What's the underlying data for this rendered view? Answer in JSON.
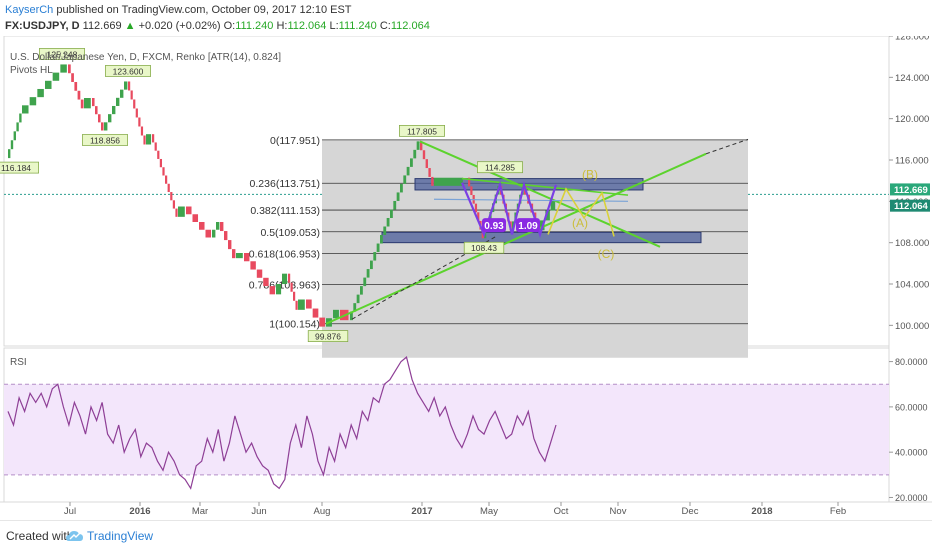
{
  "header": {
    "author": "KayserCh",
    "published_text": "published on TradingView.com, October 09, 2017 12:10 EST",
    "symbol": "FX:USDJPY, D",
    "last": "112.669",
    "change_arrow": "▲",
    "change": "+0.020 (+0.02%)",
    "o_label": "O:",
    "o": "111.240",
    "h_label": "H:",
    "h": "112.064",
    "l_label": "L:",
    "l": "111.240",
    "c_label": "C:",
    "c": "112.064"
  },
  "chart_data": {
    "type": "line",
    "title": "U.S. Dollar/Japanese Yen, D, FXCM, Renko [ATR(14), 0.824]",
    "indicator": "Pivots HL",
    "x_ticks": [
      "Jul",
      "2016",
      "Mar",
      "Jun",
      "Aug",
      "2017",
      "May",
      "Oct",
      "Nov",
      "Dec",
      "2018",
      "Feb"
    ],
    "y_ticks": [
      "128.000",
      "124.000",
      "120.000",
      "116.000",
      "112.000",
      "108.000",
      "104.000",
      "100.000"
    ],
    "ylim": [
      98,
      128
    ],
    "price_labels": {
      "last": "112.669",
      "close": "112.064"
    },
    "renko_path": [
      116.184,
      120.5,
      125.248,
      121.0,
      122.0,
      118.856,
      123.6,
      117.5,
      118.5,
      110.5,
      111.5,
      108.5,
      110.0,
      106.5,
      107.0,
      103.0,
      105.0,
      101.5,
      102.5,
      99.876,
      101.5,
      100.5,
      117.805,
      113.5,
      114.285,
      108.43,
      113.5,
      109.2,
      113.5,
      109.2,
      112.064
    ],
    "pivots": [
      {
        "label": "116.184",
        "value": 116.184
      },
      {
        "label": "125.248",
        "value": 125.248
      },
      {
        "label": "118.856",
        "value": 118.856
      },
      {
        "label": "123.600",
        "value": 123.6
      },
      {
        "label": "99.876",
        "value": 99.876
      },
      {
        "label": "117.805",
        "value": 117.805
      },
      {
        "label": "114.285",
        "value": 114.285
      },
      {
        "label": "108.43",
        "value": 108.43
      }
    ],
    "fib_levels": [
      {
        "label": "0(117.951)",
        "value": 117.951
      },
      {
        "label": "0.236(113.751)",
        "value": 113.751
      },
      {
        "label": "0.382(111.153)",
        "value": 111.153
      },
      {
        "label": "0.5(109.053)",
        "value": 109.053
      },
      {
        "label": "0.618(106.953)",
        "value": 106.953
      },
      {
        "label": "0.786(103.963)",
        "value": 103.963
      },
      {
        "label": "1(100.154)",
        "value": 100.154
      }
    ],
    "zones": [
      {
        "from": 113.1,
        "to": 114.2
      },
      {
        "from": 108.0,
        "to": 109.0
      }
    ],
    "pattern_ratios": [
      "0.93",
      "1.09"
    ],
    "pattern_points": [
      "(B)",
      "(A)",
      "(C)"
    ],
    "rsi": {
      "label": "RSI",
      "y_ticks": [
        "80.0000",
        "60.0000",
        "40.0000",
        "20.0000"
      ],
      "ylim": [
        18,
        86
      ],
      "band": [
        30,
        70
      ],
      "values": [
        58,
        52,
        64,
        58,
        66,
        62,
        66,
        60,
        68,
        70,
        60,
        52,
        62,
        56,
        48,
        60,
        54,
        62,
        48,
        44,
        52,
        40,
        46,
        50,
        38,
        44,
        42,
        36,
        32,
        40,
        36,
        30,
        28,
        24,
        34,
        36,
        46,
        40,
        50,
        36,
        44,
        56,
        48,
        40,
        44,
        38,
        34,
        32,
        26,
        24,
        28,
        44,
        52,
        42,
        56,
        48,
        36,
        30,
        42,
        36,
        48,
        42,
        52,
        46,
        58,
        54,
        64,
        62,
        70,
        72,
        76,
        80,
        82,
        72,
        66,
        62,
        58,
        64,
        56,
        60,
        52,
        46,
        42,
        48,
        56,
        50,
        48,
        54,
        58,
        52,
        46,
        48,
        56,
        52,
        58,
        46,
        40,
        36,
        44,
        52
      ]
    }
  },
  "footer": {
    "created_with": "Created with",
    "brand": "TradingView"
  },
  "colors": {
    "up": "#3fa34d",
    "down": "#e84a5f",
    "rsi": "#8e3f96",
    "band": "#f3e6fb",
    "fib_bg": "#d6d6d6",
    "zone": "#4a5c99",
    "trend": "#5cd32d"
  }
}
